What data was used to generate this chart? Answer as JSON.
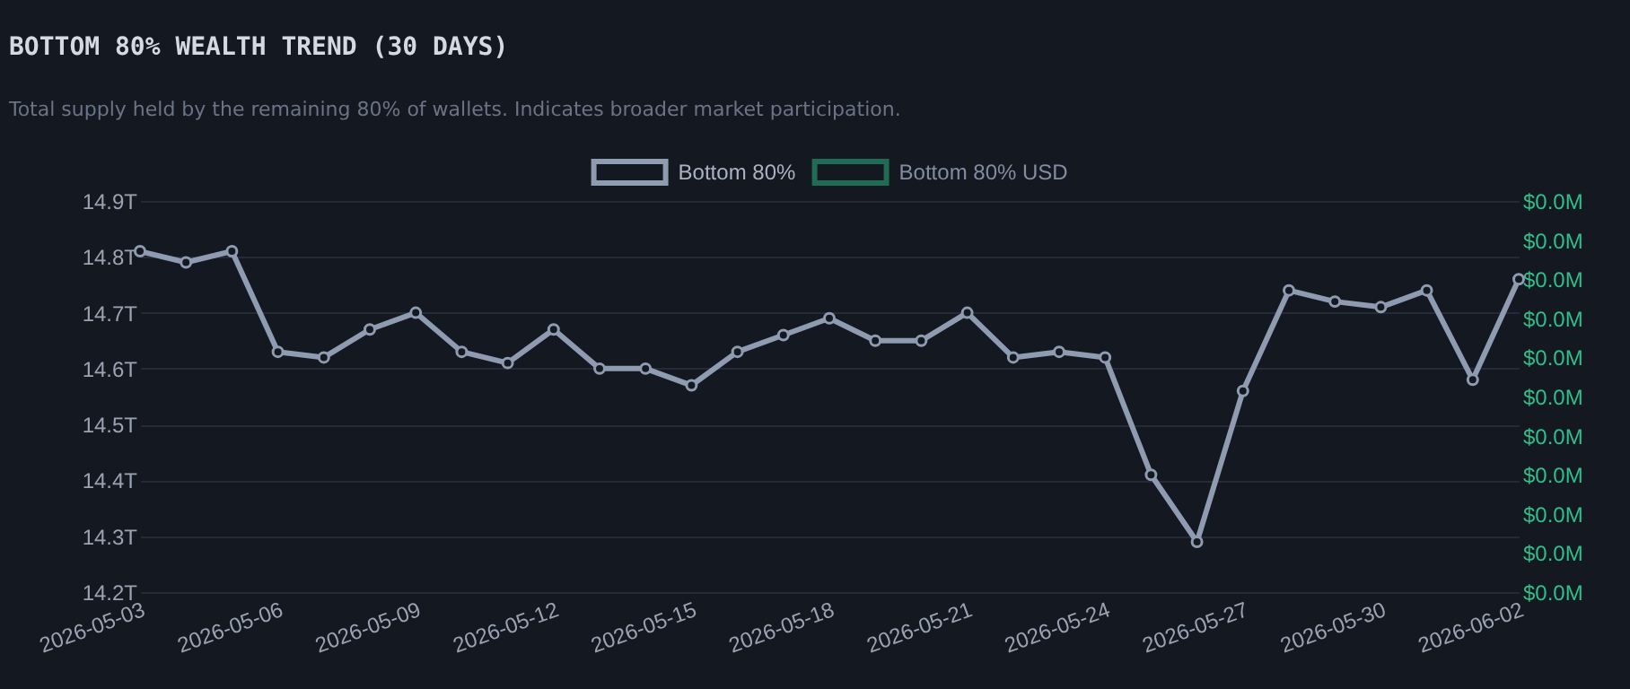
{
  "chart_data": {
    "type": "line",
    "title": "BOTTOM 80% WEALTH TREND (30 DAYS)",
    "subtitle": "Total supply held by the remaining 80% of wallets. Indicates broader market participation.",
    "x": [
      "2026-05-03",
      "2026-05-04",
      "2026-05-05",
      "2026-05-06",
      "2026-05-07",
      "2026-05-08",
      "2026-05-09",
      "2026-05-10",
      "2026-05-11",
      "2026-05-12",
      "2026-05-13",
      "2026-05-14",
      "2026-05-15",
      "2026-05-16",
      "2026-05-17",
      "2026-05-18",
      "2026-05-19",
      "2026-05-20",
      "2026-05-21",
      "2026-05-22",
      "2026-05-23",
      "2026-05-24",
      "2026-05-25",
      "2026-05-26",
      "2026-05-27",
      "2026-05-28",
      "2026-05-29",
      "2026-05-30",
      "2026-05-31",
      "2026-06-01",
      "2026-06-02"
    ],
    "series": [
      {
        "name": "Bottom 80%",
        "color": "#8e9bb0",
        "values": [
          14.81,
          14.79,
          14.81,
          14.63,
          14.62,
          14.67,
          14.7,
          14.63,
          14.61,
          14.67,
          14.6,
          14.6,
          14.57,
          14.63,
          14.66,
          14.69,
          14.65,
          14.65,
          14.7,
          14.62,
          14.63,
          14.62,
          14.41,
          14.29,
          14.56,
          14.74,
          14.72,
          14.71,
          14.74,
          14.58,
          14.76
        ]
      },
      {
        "name": "Bottom 80% USD",
        "color": "#1f6b53",
        "axis": "y2",
        "values": [
          null,
          null,
          null,
          null,
          null,
          null,
          null,
          null,
          null,
          null,
          null,
          null,
          null,
          null,
          null,
          null,
          null,
          null,
          null,
          null,
          null,
          null,
          null,
          null,
          null,
          null,
          null,
          null,
          null,
          null,
          null
        ]
      }
    ],
    "xlim": [
      "2026-05-03",
      "2026-06-02"
    ],
    "xticks": [
      "2026-05-03",
      "2026-05-06",
      "2026-05-09",
      "2026-05-12",
      "2026-05-15",
      "2026-05-18",
      "2026-05-21",
      "2026-05-24",
      "2026-05-27",
      "2026-05-30",
      "2026-06-02"
    ],
    "ylim": [
      14.2,
      14.9
    ],
    "yticks": [
      {
        "value": 14.2,
        "label": "14.2T"
      },
      {
        "value": 14.3,
        "label": "14.3T"
      },
      {
        "value": 14.4,
        "label": "14.4T"
      },
      {
        "value": 14.5,
        "label": "14.5T"
      },
      {
        "value": 14.6,
        "label": "14.6T"
      },
      {
        "value": 14.7,
        "label": "14.7T"
      },
      {
        "value": 14.8,
        "label": "14.8T"
      },
      {
        "value": 14.9,
        "label": "14.9T"
      }
    ],
    "y2lim": [
      0,
      10
    ],
    "y2ticks": [
      {
        "value": 0,
        "label": "$0.0M"
      },
      {
        "value": 1,
        "label": "$0.0M"
      },
      {
        "value": 2,
        "label": "$0.0M"
      },
      {
        "value": 3,
        "label": "$0.0M"
      },
      {
        "value": 4,
        "label": "$0.0M"
      },
      {
        "value": 5,
        "label": "$0.0M"
      },
      {
        "value": 6,
        "label": "$0.0M"
      },
      {
        "value": 7,
        "label": "$0.0M"
      },
      {
        "value": 8,
        "label": "$0.0M"
      },
      {
        "value": 9,
        "label": "$0.0M"
      },
      {
        "value": 10,
        "label": "$0.0M"
      }
    ],
    "grid": "y",
    "legend": "top",
    "marker": "circle",
    "line_style": "solid"
  }
}
